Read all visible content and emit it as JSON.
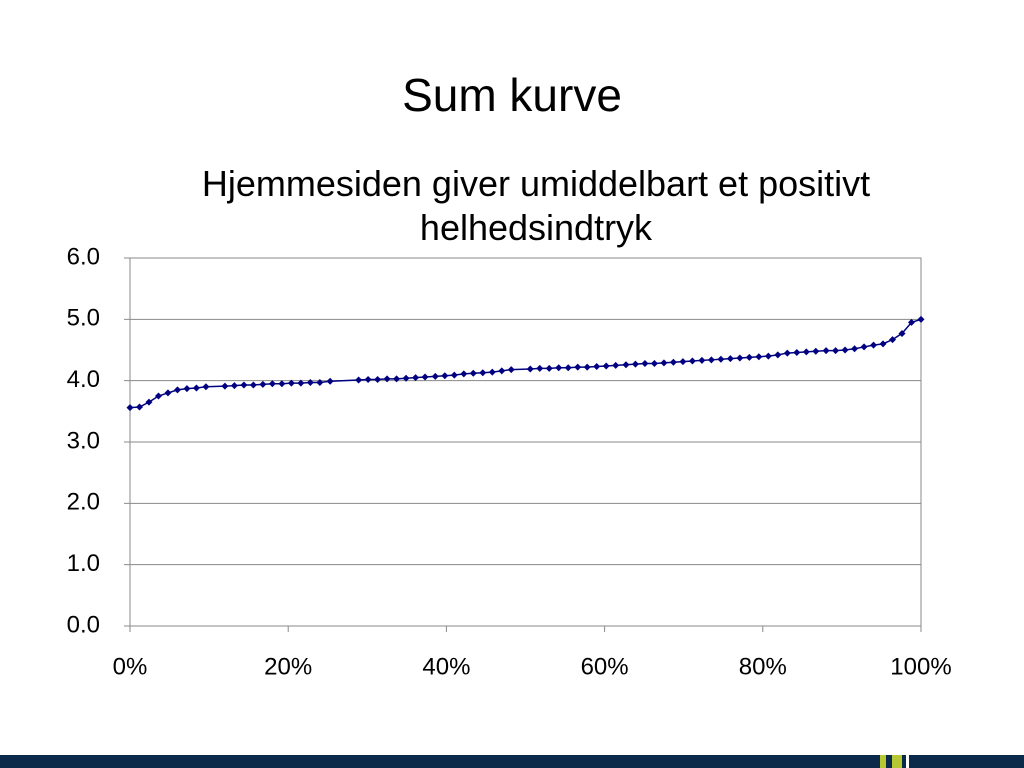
{
  "slide_title": "Sum kurve",
  "chart_data": {
    "type": "line",
    "title": "Hjemmesiden giver umiddelbart et positivt helhedsindtryk",
    "x": [
      0,
      1.2,
      2.4,
      3.6,
      4.8,
      6,
      7.2,
      8.4,
      9.6,
      12,
      13.2,
      14.4,
      15.6,
      16.8,
      18,
      19.2,
      20.4,
      21.6,
      22.8,
      24,
      25.3,
      28.9,
      30.1,
      31.3,
      32.5,
      33.7,
      34.9,
      36.1,
      37.3,
      38.6,
      39.8,
      41,
      42.2,
      43.4,
      44.6,
      45.8,
      47,
      48.2,
      50.6,
      51.8,
      53,
      54.2,
      55.4,
      56.6,
      57.8,
      59,
      60.2,
      61.4,
      62.7,
      63.9,
      65.1,
      66.3,
      67.5,
      68.7,
      69.9,
      71.1,
      72.3,
      73.5,
      74.7,
      75.9,
      77.1,
      78.3,
      79.5,
      80.7,
      81.9,
      83.1,
      84.3,
      85.5,
      86.7,
      88,
      89.2,
      90.4,
      91.6,
      92.8,
      94,
      95.2,
      96.4,
      97.6,
      98.8,
      100
    ],
    "series": [
      {
        "color": "#000080",
        "values": [
          3.56,
          3.57,
          3.65,
          3.75,
          3.8,
          3.85,
          3.87,
          3.88,
          3.9,
          3.91,
          3.92,
          3.93,
          3.93,
          3.94,
          3.95,
          3.95,
          3.96,
          3.96,
          3.97,
          3.97,
          3.99,
          4.01,
          4.02,
          4.02,
          4.03,
          4.03,
          4.04,
          4.05,
          4.06,
          4.07,
          4.08,
          4.09,
          4.11,
          4.12,
          4.13,
          4.14,
          4.16,
          4.18,
          4.19,
          4.2,
          4.2,
          4.21,
          4.21,
          4.22,
          4.22,
          4.23,
          4.24,
          4.25,
          4.26,
          4.27,
          4.28,
          4.28,
          4.29,
          4.3,
          4.31,
          4.32,
          4.33,
          4.34,
          4.35,
          4.36,
          4.37,
          4.38,
          4.39,
          4.4,
          4.42,
          4.45,
          4.46,
          4.47,
          4.48,
          4.49,
          4.49,
          4.5,
          4.52,
          4.55,
          4.58,
          4.6,
          4.67,
          4.77,
          4.95,
          5.0
        ]
      }
    ],
    "xlim": [
      0,
      100
    ],
    "xticks": [
      {
        "value": 0,
        "label": "0%"
      },
      {
        "value": 20,
        "label": "20%"
      },
      {
        "value": 40,
        "label": "40%"
      },
      {
        "value": 60,
        "label": "60%"
      },
      {
        "value": 80,
        "label": "80%"
      },
      {
        "value": 100,
        "label": "100%"
      }
    ],
    "ylim": [
      0,
      6
    ],
    "yticks": [
      {
        "value": 0,
        "label": "0.0"
      },
      {
        "value": 1,
        "label": "1.0"
      },
      {
        "value": 2,
        "label": "2.0"
      },
      {
        "value": 3,
        "label": "3.0"
      },
      {
        "value": 4,
        "label": "4.0"
      },
      {
        "value": 5,
        "label": "5.0"
      },
      {
        "value": 6,
        "label": "6.0"
      }
    ],
    "grid": true
  }
}
